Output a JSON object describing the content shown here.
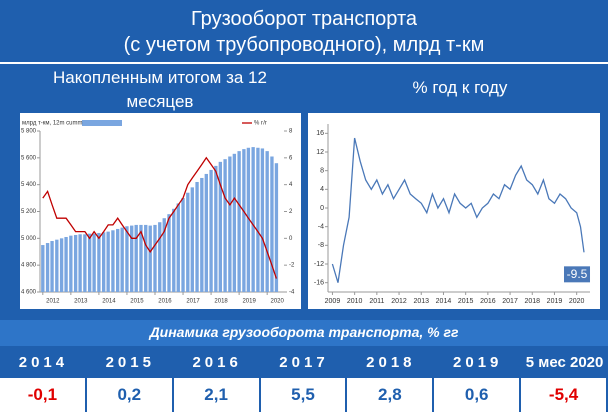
{
  "header": {
    "lines": [
      "Грузооборот транспорта",
      "(с учетом трубопроводного), млрд т-км"
    ]
  },
  "chart_data": [
    {
      "type": "bar",
      "title": "Накопленным итогом за 12 месяцев",
      "x": [
        2012,
        2012.17,
        2012.33,
        2012.5,
        2012.67,
        2012.83,
        2013,
        2013.17,
        2013.33,
        2013.5,
        2013.67,
        2013.83,
        2014,
        2014.17,
        2014.33,
        2014.5,
        2014.67,
        2014.83,
        2015,
        2015.17,
        2015.33,
        2015.5,
        2015.67,
        2015.83,
        2016,
        2016.17,
        2016.33,
        2016.5,
        2016.67,
        2016.83,
        2017,
        2017.17,
        2017.33,
        2017.5,
        2017.67,
        2017.83,
        2018,
        2018.17,
        2018.33,
        2018.5,
        2018.67,
        2018.83,
        2019,
        2019.17,
        2019.33,
        2019.5,
        2019.67,
        2019.83,
        2020,
        2020.17,
        2020.33
      ],
      "series": [
        {
          "name": "млрд т-км, 12m cumm",
          "type": "bar",
          "color": "#7aa6e0",
          "values": [
            4950,
            4965,
            4980,
            4990,
            5000,
            5010,
            5020,
            5025,
            5030,
            5030,
            5035,
            5035,
            5040,
            5045,
            5050,
            5060,
            5070,
            5080,
            5090,
            5095,
            5100,
            5100,
            5100,
            5095,
            5100,
            5120,
            5150,
            5180,
            5220,
            5260,
            5300,
            5340,
            5380,
            5420,
            5450,
            5480,
            5510,
            5540,
            5570,
            5590,
            5610,
            5630,
            5650,
            5665,
            5675,
            5680,
            5675,
            5670,
            5650,
            5610,
            5560
          ]
        },
        {
          "name": "% г/г",
          "type": "line",
          "axis": "y2",
          "color": "#c00000",
          "values": [
            3.0,
            3.5,
            2.5,
            1.5,
            1.5,
            1.5,
            1.0,
            0.5,
            0.5,
            0.5,
            0.0,
            0.5,
            0.0,
            0.5,
            1.0,
            1.0,
            1.5,
            1.0,
            0.5,
            0.0,
            0.0,
            0.5,
            -0.5,
            -1.0,
            -0.5,
            0.0,
            0.5,
            1.5,
            2.0,
            2.5,
            3.0,
            4.0,
            4.5,
            5.0,
            5.5,
            6.0,
            5.5,
            5.0,
            4.0,
            3.0,
            2.5,
            3.0,
            2.5,
            2.0,
            1.5,
            1.0,
            0.5,
            0.0,
            -1.0,
            -2.0,
            -3.0
          ]
        }
      ],
      "xlim": [
        2011.9,
        2020.6
      ],
      "xticks": [
        2012,
        2013,
        2014,
        2015,
        2016,
        2017,
        2018,
        2019,
        2020
      ],
      "ylim": [
        4600,
        5800
      ],
      "yticks": [
        {
          "value": 4600,
          "label": "4 600"
        },
        {
          "value": 4800,
          "label": "4 800"
        },
        {
          "value": 5000,
          "label": "5 000"
        },
        {
          "value": 5200,
          "label": "5 200"
        },
        {
          "value": 5400,
          "label": "5 400"
        },
        {
          "value": 5600,
          "label": "5 600"
        },
        {
          "value": 5800,
          "label": "5 800"
        }
      ],
      "y2lim": [
        -4,
        8
      ],
      "y2ticks": [
        -4,
        -2,
        0,
        2,
        4,
        6,
        8
      ],
      "legend": "top"
    },
    {
      "type": "line",
      "title": "% год к году",
      "x": [
        2009,
        2009.25,
        2009.5,
        2009.75,
        2010,
        2010.25,
        2010.5,
        2010.75,
        2011,
        2011.25,
        2011.5,
        2011.75,
        2012,
        2012.25,
        2012.5,
        2012.75,
        2013,
        2013.25,
        2013.5,
        2013.75,
        2014,
        2014.25,
        2014.5,
        2014.75,
        2015,
        2015.25,
        2015.5,
        2015.75,
        2016,
        2016.25,
        2016.5,
        2016.75,
        2017,
        2017.25,
        2017.5,
        2017.75,
        2018,
        2018.25,
        2018.5,
        2018.75,
        2019,
        2019.25,
        2019.5,
        2019.75,
        2020,
        2020.17,
        2020.33
      ],
      "series": [
        {
          "color": "#4a78b8",
          "values": [
            -12,
            -16,
            -8,
            -2,
            15,
            10,
            6,
            4,
            6,
            3,
            5,
            2,
            4,
            6,
            3,
            2,
            1,
            -1,
            3,
            0,
            2,
            -1,
            3,
            1,
            0,
            1,
            -2,
            0,
            1,
            3,
            2,
            5,
            4,
            7,
            9,
            6,
            5,
            3,
            6,
            2,
            1,
            3,
            2,
            0,
            -1,
            -4,
            -9.5
          ]
        }
      ],
      "xlim": [
        2008.8,
        2020.6
      ],
      "xticks": [
        2009,
        2010,
        2011,
        2012,
        2013,
        2014,
        2015,
        2016,
        2017,
        2018,
        2019,
        2020
      ],
      "ylim": [
        -18,
        18
      ],
      "yticks": [
        -16,
        -12,
        -8,
        -4,
        0,
        4,
        8,
        12,
        16
      ]
    }
  ],
  "table": {
    "title": "Динамика грузооборота транспорта, % гг",
    "header": [
      "2014",
      "2015",
      "2016",
      "2017",
      "2018",
      "2019",
      "5 мес 2020"
    ],
    "row": [
      "-0,1",
      "0,2",
      "2,1",
      "5,5",
      "2,8",
      "0,6",
      "-5,4"
    ]
  }
}
